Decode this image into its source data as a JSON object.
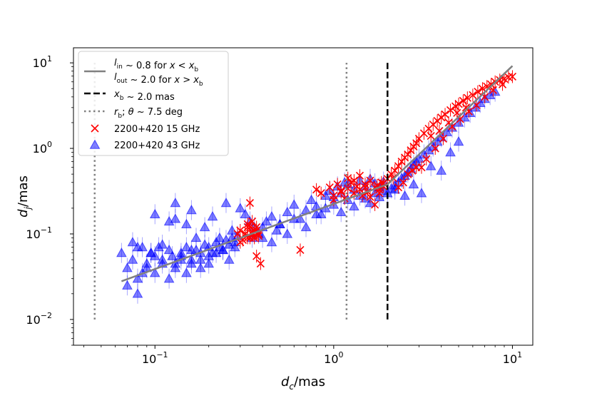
{
  "chart_data": {
    "type": "scatter",
    "title": "",
    "xlabel": "d_c/mas",
    "ylabel": "d_j/mas",
    "xscale": "log",
    "yscale": "log",
    "xlim": [
      0.035,
      13
    ],
    "ylim": [
      0.005,
      15
    ],
    "x_ticks": [
      {
        "value": 0.1,
        "base": "10",
        "exp": "−1"
      },
      {
        "value": 1,
        "base": "10",
        "exp": "0"
      },
      {
        "value": 10,
        "base": "10",
        "exp": "1"
      }
    ],
    "y_ticks": [
      {
        "value": 0.01,
        "base": "10",
        "exp": "−2"
      },
      {
        "value": 0.1,
        "base": "10",
        "exp": "−1"
      },
      {
        "value": 1,
        "base": "10",
        "exp": "0"
      },
      {
        "value": 10,
        "base": "10",
        "exp": "1"
      }
    ],
    "grid": false,
    "legend_position": "top-left",
    "fit": {
      "name_line1": "l_in ~ 0.8 for x < x_b",
      "name_line2": "l_out ~ 2.0 for x > x_b",
      "color": "#808080",
      "x": [
        0.065,
        2.0,
        10.0
      ],
      "y": [
        0.028,
        0.38,
        9.2
      ]
    },
    "break_line": {
      "name": "x_b ~ 2.0 mas",
      "x": 2.0,
      "y_range": [
        0.01,
        10
      ],
      "color": "#000000"
    },
    "rb_lines": {
      "name": "r_b; θ ~ 7.5 deg",
      "x": [
        0.046,
        1.18
      ],
      "y_range": [
        0.01,
        10
      ],
      "color": "#808080"
    },
    "series": [
      {
        "name": "2200+420 15 GHz",
        "marker": "x",
        "color": "#ff0000",
        "x": [
          0.3,
          0.32,
          0.33,
          0.34,
          0.35,
          0.36,
          0.37,
          0.38,
          0.31,
          0.33,
          0.35,
          0.37,
          0.32,
          0.34,
          0.36,
          0.29,
          0.38,
          0.33,
          0.35,
          0.3,
          0.36,
          0.34,
          0.37,
          0.39,
          0.65,
          0.8,
          0.85,
          0.95,
          1.0,
          1.05,
          1.1,
          1.2,
          1.25,
          1.3,
          1.35,
          1.4,
          1.5,
          1.55,
          1.6,
          1.7,
          1.75,
          1.8,
          1.85,
          1.9,
          1.0,
          1.15,
          1.3,
          1.45,
          1.6,
          1.7,
          1.4,
          1.2,
          1.1,
          1.5,
          1.8,
          1.9,
          2.0,
          2.1,
          2.2,
          2.3,
          2.4,
          2.5,
          2.6,
          2.7,
          2.8,
          2.9,
          3.0,
          3.2,
          3.4,
          3.6,
          3.8,
          4.0,
          4.2,
          4.5,
          4.8,
          5.0,
          5.3,
          5.6,
          6.0,
          6.4,
          6.8,
          7.2,
          7.6,
          8.0,
          8.5,
          9.0,
          9.5,
          10.0,
          2.3,
          2.6,
          2.9,
          3.3,
          3.7,
          4.1,
          4.6,
          5.1,
          5.7,
          6.3,
          7.0,
          7.8,
          8.8,
          2.15,
          2.45,
          2.75,
          3.1,
          3.5,
          3.9,
          4.4,
          4.9,
          5.5
        ],
        "y": [
          0.11,
          0.1,
          0.09,
          0.12,
          0.105,
          0.095,
          0.11,
          0.1,
          0.085,
          0.13,
          0.14,
          0.12,
          0.1,
          0.09,
          0.11,
          0.1,
          0.095,
          0.12,
          0.1,
          0.08,
          0.09,
          0.23,
          0.055,
          0.045,
          0.065,
          0.33,
          0.3,
          0.35,
          0.28,
          0.38,
          0.32,
          0.34,
          0.4,
          0.3,
          0.36,
          0.33,
          0.38,
          0.31,
          0.42,
          0.35,
          0.37,
          0.3,
          0.4,
          0.36,
          0.25,
          0.26,
          0.42,
          0.28,
          0.27,
          0.22,
          0.48,
          0.45,
          0.31,
          0.35,
          0.33,
          0.39,
          0.44,
          0.5,
          0.55,
          0.62,
          0.7,
          0.78,
          0.85,
          0.95,
          1.05,
          1.15,
          1.3,
          1.5,
          1.7,
          1.9,
          2.1,
          2.3,
          2.5,
          2.8,
          3.1,
          3.3,
          3.6,
          3.9,
          4.2,
          4.6,
          5.0,
          5.3,
          5.6,
          6.0,
          6.3,
          6.5,
          6.8,
          6.9,
          0.35,
          0.5,
          0.6,
          0.75,
          1.0,
          1.3,
          1.8,
          2.2,
          2.7,
          3.2,
          4.0,
          4.8,
          5.6,
          0.45,
          0.4,
          0.55,
          0.6,
          1.4,
          1.6,
          2.0,
          2.6,
          3.0
        ]
      },
      {
        "name": "2200+420 43 GHz",
        "marker": "^",
        "color": "#0000ff",
        "x": [
          0.065,
          0.07,
          0.075,
          0.08,
          0.085,
          0.09,
          0.095,
          0.1,
          0.105,
          0.11,
          0.12,
          0.13,
          0.14,
          0.15,
          0.16,
          0.17,
          0.18,
          0.19,
          0.2,
          0.21,
          0.22,
          0.23,
          0.24,
          0.25,
          0.26,
          0.27,
          0.28,
          0.29,
          0.07,
          0.08,
          0.09,
          0.1,
          0.11,
          0.12,
          0.13,
          0.14,
          0.15,
          0.16,
          0.18,
          0.2,
          0.22,
          0.24,
          0.26,
          0.28,
          0.075,
          0.085,
          0.095,
          0.11,
          0.125,
          0.14,
          0.16,
          0.18,
          0.2,
          0.23,
          0.27,
          0.13,
          0.15,
          0.17,
          0.19,
          0.21,
          0.25,
          0.3,
          0.32,
          0.34,
          0.36,
          0.38,
          0.4,
          0.42,
          0.45,
          0.48,
          0.5,
          0.55,
          0.6,
          0.65,
          0.7,
          0.75,
          0.8,
          0.85,
          0.9,
          0.95,
          1.0,
          1.05,
          1.1,
          1.15,
          1.2,
          1.3,
          1.4,
          1.5,
          1.6,
          1.7,
          1.8,
          1.9,
          0.35,
          0.4,
          0.45,
          0.5,
          0.55,
          0.6,
          0.7,
          0.8,
          0.9,
          1.0,
          1.1,
          1.2,
          1.3,
          1.4,
          1.5,
          1.6,
          1.7,
          1.8,
          1.9,
          2.0,
          2.1,
          2.2,
          2.3,
          2.4,
          2.5,
          2.6,
          2.7,
          2.8,
          2.9,
          3.0,
          3.2,
          3.4,
          3.6,
          3.8,
          4.0,
          4.3,
          4.6,
          5.0,
          5.4,
          5.8,
          6.2,
          6.6,
          7.0,
          7.5,
          8.0,
          2.2,
          2.5,
          2.8,
          3.1,
          3.5,
          4.0,
          4.5,
          5.0,
          0.13,
          0.1,
          0.16,
          0.12,
          0.08
        ],
        "y": [
          0.06,
          0.04,
          0.05,
          0.07,
          0.035,
          0.045,
          0.06,
          0.055,
          0.07,
          0.05,
          0.065,
          0.045,
          0.055,
          0.07,
          0.05,
          0.065,
          0.06,
          0.075,
          0.07,
          0.06,
          0.08,
          0.07,
          0.065,
          0.085,
          0.075,
          0.09,
          0.08,
          0.095,
          0.025,
          0.03,
          0.04,
          0.035,
          0.045,
          0.03,
          0.04,
          0.05,
          0.035,
          0.045,
          0.04,
          0.055,
          0.06,
          0.065,
          0.05,
          0.07,
          0.08,
          0.07,
          0.06,
          0.075,
          0.055,
          0.06,
          0.065,
          0.05,
          0.045,
          0.09,
          0.11,
          0.15,
          0.13,
          0.09,
          0.12,
          0.16,
          0.23,
          0.2,
          0.17,
          0.14,
          0.12,
          0.1,
          0.09,
          0.14,
          0.16,
          0.11,
          0.13,
          0.18,
          0.22,
          0.15,
          0.19,
          0.25,
          0.21,
          0.17,
          0.28,
          0.32,
          0.27,
          0.36,
          0.3,
          0.4,
          0.38,
          0.33,
          0.42,
          0.36,
          0.44,
          0.39,
          0.35,
          0.41,
          0.09,
          0.12,
          0.08,
          0.13,
          0.1,
          0.15,
          0.12,
          0.17,
          0.2,
          0.22,
          0.18,
          0.25,
          0.21,
          0.28,
          0.26,
          0.23,
          0.3,
          0.27,
          0.32,
          0.3,
          0.34,
          0.37,
          0.4,
          0.45,
          0.48,
          0.52,
          0.58,
          0.64,
          0.7,
          0.76,
          0.85,
          0.95,
          1.05,
          1.2,
          1.35,
          1.55,
          1.75,
          2.0,
          2.3,
          2.6,
          3.0,
          3.4,
          3.8,
          4.2,
          4.6,
          0.33,
          0.28,
          0.38,
          0.3,
          0.62,
          0.55,
          0.9,
          1.2,
          0.23,
          0.17,
          0.19,
          0.14,
          0.02
        ]
      }
    ]
  }
}
